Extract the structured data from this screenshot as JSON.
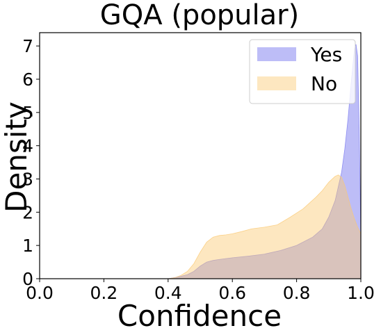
{
  "chart_data": {
    "type": "area",
    "title": "GQA (popular)",
    "xlabel": "Confidence",
    "ylabel": "Density",
    "xlim": [
      0.0,
      1.0
    ],
    "ylim": [
      0,
      7.4
    ],
    "xticks": [
      "0.0",
      "0.2",
      "0.4",
      "0.6",
      "0.8",
      "1.0"
    ],
    "yticks": [
      "0",
      "1",
      "2",
      "3",
      "4",
      "5",
      "6",
      "7"
    ],
    "legend_position": "top-right",
    "grid": false,
    "series": [
      {
        "name": "Yes",
        "color": "#7b7bf0",
        "alpha": 0.5,
        "x": [
          0.4,
          0.43,
          0.46,
          0.48,
          0.5,
          0.52,
          0.54,
          0.56,
          0.6,
          0.65,
          0.7,
          0.75,
          0.8,
          0.85,
          0.88,
          0.9,
          0.92,
          0.94,
          0.95,
          0.96,
          0.97,
          0.975,
          0.98,
          0.985,
          0.99,
          0.995,
          1.0
        ],
        "y": [
          0.0,
          0.05,
          0.12,
          0.22,
          0.38,
          0.5,
          0.55,
          0.58,
          0.63,
          0.68,
          0.74,
          0.85,
          1.0,
          1.25,
          1.5,
          1.85,
          2.35,
          3.2,
          3.9,
          4.8,
          5.9,
          6.4,
          6.9,
          7.05,
          6.7,
          4.5,
          1.3
        ]
      },
      {
        "name": "No",
        "color": "#fbc973",
        "alpha": 0.45,
        "x": [
          0.4,
          0.42,
          0.44,
          0.46,
          0.48,
          0.5,
          0.52,
          0.54,
          0.56,
          0.58,
          0.6,
          0.63,
          0.66,
          0.7,
          0.74,
          0.78,
          0.82,
          0.86,
          0.88,
          0.9,
          0.92,
          0.93,
          0.94,
          0.95,
          0.96,
          0.97,
          0.98,
          0.99,
          1.0
        ],
        "y": [
          0.0,
          0.03,
          0.1,
          0.22,
          0.45,
          0.8,
          1.1,
          1.25,
          1.3,
          1.32,
          1.35,
          1.42,
          1.5,
          1.55,
          1.62,
          1.85,
          2.1,
          2.45,
          2.65,
          2.9,
          3.08,
          3.12,
          3.05,
          2.8,
          2.45,
          2.1,
          1.8,
          1.55,
          1.35
        ]
      }
    ]
  }
}
